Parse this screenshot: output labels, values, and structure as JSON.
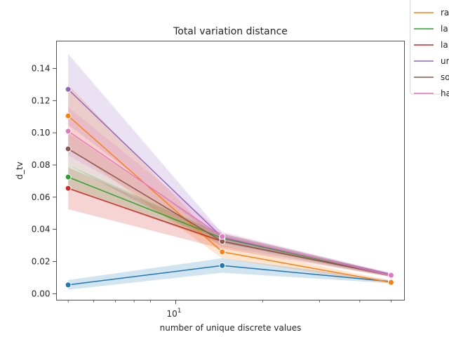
{
  "chart_data": {
    "type": "line",
    "title": "Total variation distance",
    "xlabel": "number of unique discrete values",
    "ylabel": "d_tv",
    "xscale": "log",
    "x": [
      5,
      15,
      50
    ],
    "xlim": [
      4.6,
      55
    ],
    "ylim": [
      -0.004,
      0.157
    ],
    "x_tick_label": {
      "base": "10",
      "exponent": "1"
    },
    "yticks": [
      "0.00",
      "0.02",
      "0.04",
      "0.06",
      "0.08",
      "0.10",
      "0.12",
      "0.14"
    ],
    "grid": false,
    "legend_position": "upper right, outside the axes",
    "series": [
      {
        "name": "",
        "color": "#1f77b4",
        "values": [
          0.0055,
          0.0175,
          0.0075
        ],
        "lower": [
          0.0025,
          0.013,
          0.0065
        ],
        "upper": [
          0.0085,
          0.022,
          0.0085
        ]
      },
      {
        "name": "ra",
        "color": "#ff7f0e",
        "values": [
          0.1105,
          0.026,
          0.007
        ],
        "lower": [
          0.091,
          0.022,
          0.006
        ],
        "upper": [
          0.13,
          0.03,
          0.008
        ]
      },
      {
        "name": "la",
        "color": "#2ca02c",
        "values": [
          0.0725,
          0.0345,
          0.0115
        ],
        "lower": [
          0.065,
          0.0315,
          0.0105
        ],
        "upper": [
          0.08,
          0.0375,
          0.0125
        ]
      },
      {
        "name": "la",
        "color": "#d62728",
        "values": [
          0.0655,
          0.0325,
          0.0115
        ],
        "lower": [
          0.0525,
          0.028,
          0.0105
        ],
        "upper": [
          0.0785,
          0.037,
          0.0125
        ]
      },
      {
        "name": "un",
        "color": "#9467bd",
        "values": [
          0.127,
          0.035,
          0.012
        ],
        "lower": [
          0.105,
          0.0325,
          0.011
        ],
        "upper": [
          0.149,
          0.0375,
          0.013
        ]
      },
      {
        "name": "so",
        "color": "#8c564b",
        "values": [
          0.09,
          0.0325,
          0.0115
        ],
        "lower": [
          0.08,
          0.0295,
          0.0105
        ],
        "upper": [
          0.1,
          0.0355,
          0.0125
        ]
      },
      {
        "name": "ha",
        "color": "#e377c2",
        "values": [
          0.101,
          0.0355,
          0.0115
        ],
        "lower": [
          0.086,
          0.0325,
          0.0105
        ],
        "upper": [
          0.116,
          0.0385,
          0.0125
        ]
      }
    ]
  }
}
